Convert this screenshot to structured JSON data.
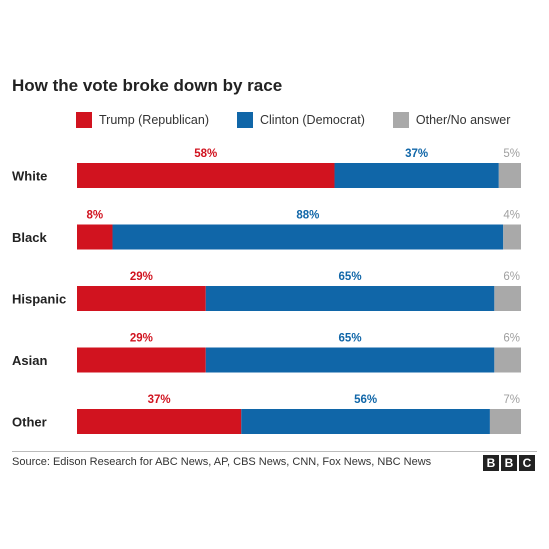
{
  "chart_data": {
    "type": "bar",
    "stacked": true,
    "orientation": "horizontal",
    "title": "How the vote broke down by race",
    "categories": [
      "White",
      "Black",
      "Hispanic",
      "Asian",
      "Other"
    ],
    "series": [
      {
        "name": "Trump (Republican)",
        "color": "#d1131f",
        "values": [
          58,
          8,
          29,
          29,
          37
        ]
      },
      {
        "name": "Clinton (Democrat)",
        "color": "#1066a8",
        "values": [
          37,
          88,
          65,
          65,
          56
        ]
      },
      {
        "name": "Other/No answer",
        "color": "#a9a9a9",
        "values": [
          5,
          4,
          6,
          6,
          7
        ]
      }
    ],
    "value_suffix": "%",
    "label_colors": [
      "#d1131f",
      "#1066a8",
      "#a0a0a0"
    ],
    "legend_position": "top",
    "grid": false
  },
  "source": "Source: Edison Research for ABC News, AP, CBS News, CNN, Fox News, NBC News",
  "logo": {
    "letters": [
      "B",
      "B",
      "C"
    ]
  }
}
